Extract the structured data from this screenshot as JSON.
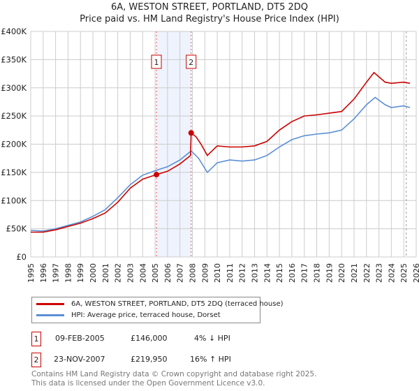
{
  "chart_data": {
    "type": "line",
    "title": "6A, WESTON STREET, PORTLAND, DT5 2DQ",
    "subtitle": "Price paid vs. HM Land Registry's House Price Index (HPI)",
    "xlim": [
      1995,
      2026
    ],
    "ylim": [
      0,
      400000
    ],
    "x_ticks": [
      "1995",
      "1996",
      "1997",
      "1998",
      "1999",
      "2000",
      "2001",
      "2002",
      "2003",
      "2004",
      "2005",
      "2006",
      "2007",
      "2008",
      "2009",
      "2010",
      "2011",
      "2012",
      "2013",
      "2014",
      "2015",
      "2016",
      "2017",
      "2018",
      "2019",
      "2020",
      "2021",
      "2022",
      "2023",
      "2024",
      "2025",
      "2026"
    ],
    "y_ticks": [
      {
        "v": 0,
        "label": "£0"
      },
      {
        "v": 50000,
        "label": "£50K"
      },
      {
        "v": 100000,
        "label": "£100K"
      },
      {
        "v": 150000,
        "label": "£150K"
      },
      {
        "v": 200000,
        "label": "£200K"
      },
      {
        "v": 250000,
        "label": "£250K"
      },
      {
        "v": 300000,
        "label": "£300K"
      },
      {
        "v": 350000,
        "label": "£350K"
      },
      {
        "v": 400000,
        "label": "£400K"
      }
    ],
    "grid": true,
    "series": [
      {
        "name": "6A, WESTON STREET, PORTLAND, DT5 2DQ (terraced house)",
        "color": "#cc0000",
        "x": [
          1995,
          1996,
          1997,
          1998,
          1999,
          2000,
          2001,
          2002,
          2003,
          2004,
          2005.1,
          2006,
          2007,
          2007.85,
          2007.9,
          2008.3,
          2008.7,
          2009.2,
          2010,
          2011,
          2012,
          2013,
          2014,
          2015,
          2016,
          2017,
          2018,
          2019,
          2020,
          2021,
          2022,
          2022.6,
          2023.5,
          2024,
          2025,
          2025.5
        ],
        "y": [
          44000,
          44000,
          48000,
          54000,
          60000,
          68000,
          78000,
          97000,
          122000,
          138000,
          146000,
          152000,
          165000,
          180000,
          219950,
          213000,
          200000,
          180000,
          197000,
          195000,
          195000,
          197000,
          205000,
          225000,
          240000,
          250000,
          252000,
          255000,
          258000,
          280000,
          310000,
          327000,
          310000,
          308000,
          310000,
          308000
        ]
      },
      {
        "name": "HPI: Average price, terraced house, Dorset",
        "color": "#5b8fd4",
        "x": [
          1995,
          1996,
          1997,
          1998,
          1999,
          2000,
          2001,
          2002,
          2003,
          2004,
          2005,
          2006,
          2007,
          2007.9,
          2008.5,
          2009.2,
          2010,
          2011,
          2012,
          2013,
          2014,
          2015,
          2016,
          2017,
          2018,
          2019,
          2020,
          2021,
          2022,
          2022.7,
          2023.5,
          2024,
          2025,
          2025.5
        ],
        "y": [
          47000,
          46000,
          50000,
          56000,
          62000,
          72000,
          84000,
          105000,
          128000,
          145000,
          153000,
          160000,
          172000,
          188000,
          175000,
          150000,
          167000,
          172000,
          170000,
          172000,
          180000,
          195000,
          208000,
          215000,
          218000,
          220000,
          225000,
          245000,
          270000,
          283000,
          270000,
          265000,
          268000,
          265000
        ]
      }
    ],
    "sales": [
      {
        "label": "1",
        "x": 2005.11,
        "y": 146000,
        "date": "09-FEB-2005",
        "price": "£146,000",
        "hpi": "4% ↓ HPI"
      },
      {
        "label": "2",
        "x": 2007.9,
        "y": 219950,
        "date": "23-NOV-2007",
        "price": "£219,950",
        "hpi": "16% ↑ HPI"
      }
    ],
    "legend_placement": "bottom"
  },
  "footer": {
    "line1": "Contains HM Land Registry data © Crown copyright and database right 2025.",
    "line2": "This data is licensed under the Open Government Licence v3.0."
  }
}
